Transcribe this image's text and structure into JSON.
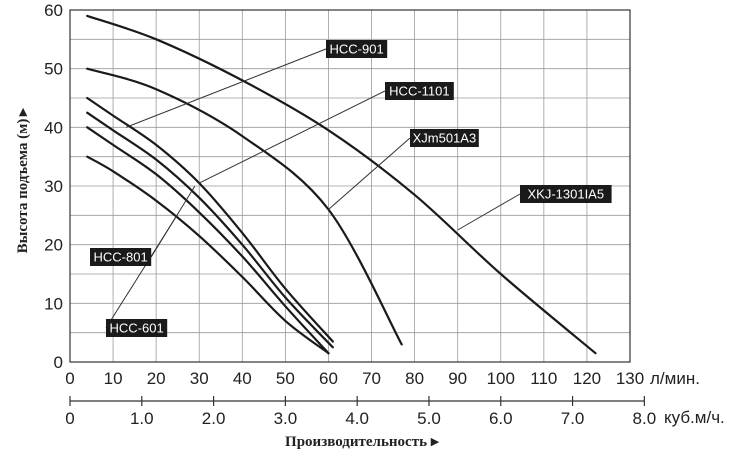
{
  "chart_data": {
    "type": "line",
    "ylabel": "Высота подъема (м)",
    "xlabel": "Производительность",
    "x_unit": "л/мин.",
    "x2_unit": "куб.м/ч.",
    "xlim": [
      0,
      130
    ],
    "ylim": [
      0,
      60
    ],
    "x_ticks": [
      "0",
      "10",
      "20",
      "30",
      "40",
      "50",
      "60",
      "70",
      "80",
      "90",
      "100",
      "110",
      "120",
      "130"
    ],
    "y_ticks": [
      "0",
      "10",
      "20",
      "30",
      "40",
      "50",
      "60"
    ],
    "x2_ticks": [
      "0",
      "1.0",
      "2.0",
      "3.0",
      "4.0",
      "5.0",
      "6.0",
      "7.0",
      "8.0"
    ],
    "grid": true,
    "series": [
      {
        "name": "HCC-601",
        "x": [
          4,
          10,
          20,
          30,
          40,
          50,
          60
        ],
        "y": [
          35,
          32.5,
          27.5,
          21.5,
          14.5,
          7,
          1.5
        ],
        "label_at": [
          25,
          25.2
        ]
      },
      {
        "name": "HCC-801",
        "x": [
          4,
          10,
          20,
          30,
          40,
          50,
          60
        ],
        "y": [
          40,
          37,
          32,
          25.5,
          18,
          9.5,
          1.5
        ],
        "label_at": [
          29,
          30
        ]
      },
      {
        "name": "HCC-901",
        "x": [
          4,
          10,
          20,
          30,
          40,
          50,
          61
        ],
        "y": [
          42.5,
          39.5,
          34.5,
          28,
          20,
          11,
          2.5
        ],
        "label_at": [
          13,
          40
        ]
      },
      {
        "name": "HCC-1101",
        "x": [
          4,
          10,
          20,
          30,
          40,
          50,
          61
        ],
        "y": [
          45,
          42,
          37,
          30.5,
          22,
          12.5,
          3.5
        ],
        "label_at": [
          30,
          30.5
        ]
      },
      {
        "name": "XJm501A3",
        "x": [
          4,
          20,
          40,
          60,
          77
        ],
        "y": [
          50,
          46.5,
          38.5,
          26,
          3
        ],
        "label_at": [
          60,
          26
        ]
      },
      {
        "name": "XKJ-1301IA5",
        "x": [
          4,
          20,
          40,
          60,
          80,
          100,
          122
        ],
        "y": [
          59,
          55,
          48,
          39.5,
          28.5,
          15,
          1.5
        ],
        "label_at": [
          90,
          22.5
        ]
      }
    ]
  }
}
